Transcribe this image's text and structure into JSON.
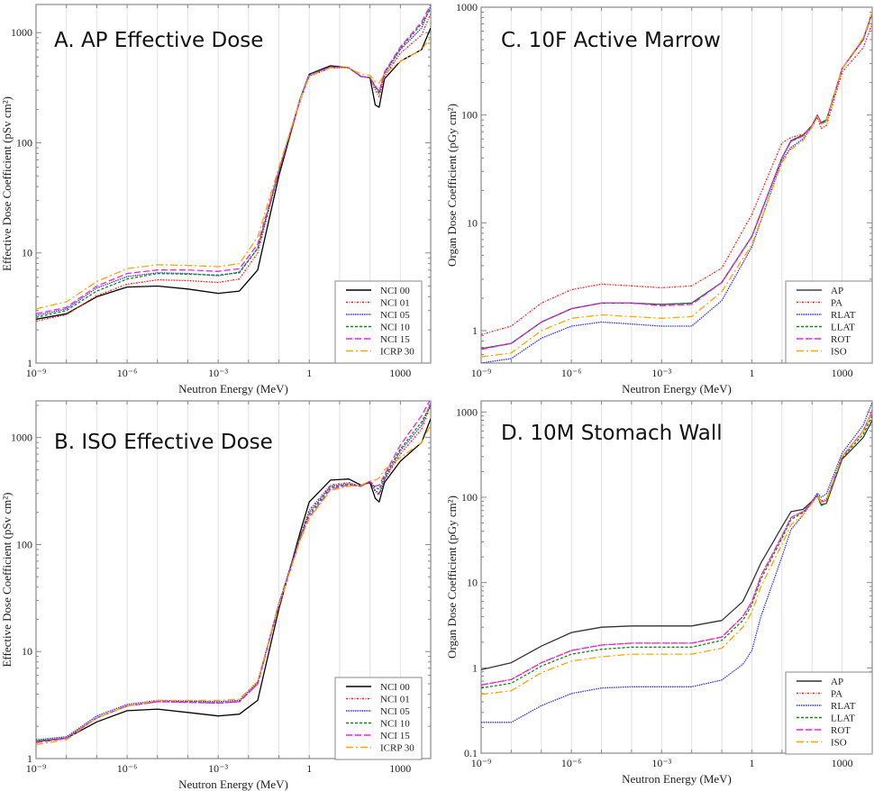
{
  "chart_data": [
    {
      "id": "A",
      "type": "line",
      "title": "A. AP Effective Dose",
      "xlabel": "Neutron Energy (MeV)",
      "ylabel": "Effective Dose Coefficient (pSv cm²)",
      "xscale": "log",
      "yscale": "log",
      "xlim": [
        1e-09,
        10000
      ],
      "ylim": [
        1,
        1800
      ],
      "xticks": [
        {
          "v": 1e-09,
          "label": "10⁻⁹"
        },
        {
          "v": 1e-06,
          "label": "10⁻⁶"
        },
        {
          "v": 0.001,
          "label": "10⁻³"
        },
        {
          "v": 1,
          "label": "1"
        },
        {
          "v": 1000,
          "label": "1000"
        }
      ],
      "yticks": [
        {
          "v": 1,
          "label": "1"
        },
        {
          "v": 10,
          "label": "10"
        },
        {
          "v": 100,
          "label": "100"
        },
        {
          "v": 1000,
          "label": "1000"
        }
      ],
      "grid": true,
      "legend_position": "bottom-right",
      "x": [
        1e-09,
        1e-08,
        1e-07,
        1e-06,
        1e-05,
        0.0001,
        0.001,
        0.005,
        0.02,
        0.1,
        0.5,
        1,
        5,
        20,
        50,
        100,
        150,
        200,
        300,
        1000,
        5000,
        10000
      ],
      "series": [
        {
          "name": "NCI 00",
          "color": "#000000",
          "dash": "",
          "values": [
            2.5,
            2.8,
            4.0,
            4.9,
            5.0,
            4.7,
            4.3,
            4.5,
            7,
            50,
            250,
            420,
            500,
            480,
            400,
            390,
            220,
            210,
            380,
            550,
            700,
            1100
          ]
        },
        {
          "name": "NCI 01",
          "color": "#ee2222",
          "dash": "2,1.5,1,1.5",
          "values": [
            2.4,
            2.75,
            4.1,
            5.2,
            5.7,
            5.6,
            5.4,
            5.8,
            10,
            55,
            240,
            400,
            480,
            480,
            400,
            390,
            300,
            260,
            400,
            650,
            950,
            1500
          ]
        },
        {
          "name": "NCI 05",
          "color": "#3333dd",
          "dash": "1.5,1",
          "values": [
            2.7,
            3.1,
            4.8,
            6.1,
            6.6,
            6.5,
            6.2,
            6.7,
            11,
            55,
            250,
            420,
            490,
            480,
            400,
            390,
            320,
            290,
            420,
            700,
            1100,
            1750
          ]
        },
        {
          "name": "NCI 10",
          "color": "#118811",
          "dash": "3,2",
          "values": [
            2.6,
            3.0,
            4.5,
            5.8,
            6.5,
            6.4,
            6.3,
            6.6,
            11,
            55,
            250,
            410,
            485,
            478,
            400,
            390,
            320,
            280,
            430,
            720,
            1200,
            1650
          ]
        },
        {
          "name": "NCI 15",
          "color": "#ee22ee",
          "dash": "7,3",
          "values": [
            2.8,
            3.2,
            5.0,
            6.5,
            7.0,
            7.0,
            6.8,
            7.2,
            12,
            56,
            250,
            410,
            485,
            480,
            400,
            390,
            330,
            290,
            440,
            740,
            1250,
            1800
          ]
        },
        {
          "name": "ICRP 30",
          "color": "#ffa500",
          "dash": "8,3,2,3",
          "values": [
            3.1,
            3.6,
            5.5,
            7.2,
            7.8,
            7.7,
            7.5,
            8.0,
            14,
            60,
            245,
            405,
            480,
            480,
            420,
            410,
            360,
            350,
            420,
            550,
            700,
            900
          ]
        }
      ]
    },
    {
      "id": "C",
      "type": "line",
      "title": "C. 10F Active Marrow",
      "xlabel": "Neutron Energy (MeV)",
      "ylabel": "Organ Dose Coefficient (pGy cm²)",
      "xscale": "log",
      "yscale": "log",
      "xlim": [
        1e-09,
        10000
      ],
      "ylim": [
        0.5,
        1000
      ],
      "xticks": [
        {
          "v": 1e-09,
          "label": "10⁻⁹"
        },
        {
          "v": 1e-06,
          "label": "10⁻⁶"
        },
        {
          "v": 0.001,
          "label": "10⁻³"
        },
        {
          "v": 1,
          "label": "1"
        },
        {
          "v": 1000,
          "label": "1000"
        }
      ],
      "yticks": [
        {
          "v": 1,
          "label": "1"
        },
        {
          "v": 10,
          "label": "10"
        },
        {
          "v": 100,
          "label": "100"
        },
        {
          "v": 1000,
          "label": "1000"
        }
      ],
      "grid": true,
      "legend_position": "bottom-right",
      "x": [
        1e-09,
        1e-08,
        1e-07,
        1e-06,
        1e-05,
        0.0001,
        0.001,
        0.01,
        0.1,
        1,
        10,
        20,
        50,
        100,
        150,
        200,
        300,
        1000,
        5000,
        10000
      ],
      "series": [
        {
          "name": "AP",
          "color": "#444444",
          "dash": "",
          "values": [
            0.68,
            0.76,
            1.2,
            1.6,
            1.8,
            1.8,
            1.75,
            1.8,
            2.8,
            7.5,
            40,
            58,
            65,
            80,
            100,
            85,
            90,
            270,
            500,
            900
          ]
        },
        {
          "name": "PA",
          "color": "#ee2222",
          "dash": "2,1.5,1,1.5",
          "values": [
            0.92,
            1.1,
            1.8,
            2.4,
            2.7,
            2.6,
            2.5,
            2.6,
            3.8,
            12,
            55,
            62,
            66,
            78,
            95,
            75,
            80,
            250,
            420,
            700
          ]
        },
        {
          "name": "RLAT",
          "color": "#3333dd",
          "dash": "1.5,1",
          "values": [
            0.5,
            0.55,
            0.85,
            1.1,
            1.2,
            1.15,
            1.1,
            1.1,
            1.9,
            6,
            38,
            50,
            60,
            78,
            98,
            83,
            88,
            270,
            500,
            880
          ]
        },
        {
          "name": "LLAT",
          "color": "#118811",
          "dash": "3,2",
          "values": [
            0.68,
            0.76,
            1.2,
            1.6,
            1.8,
            1.8,
            1.75,
            1.8,
            2.8,
            7.5,
            40,
            57,
            64,
            80,
            98,
            83,
            88,
            270,
            500,
            880
          ]
        },
        {
          "name": "ROT",
          "color": "#ee22ee",
          "dash": "7,3",
          "values": [
            0.67,
            0.76,
            1.2,
            1.6,
            1.8,
            1.8,
            1.7,
            1.75,
            2.8,
            7.5,
            40,
            57,
            64,
            80,
            98,
            83,
            88,
            270,
            500,
            880
          ]
        },
        {
          "name": "ISO",
          "color": "#ffa500",
          "dash": "8,3,2,3",
          "values": [
            0.57,
            0.62,
            1.0,
            1.3,
            1.4,
            1.35,
            1.3,
            1.35,
            2.3,
            6.3,
            36,
            48,
            58,
            77,
            97,
            82,
            88,
            270,
            520,
            900
          ]
        }
      ]
    },
    {
      "id": "B",
      "type": "line",
      "title": "B. ISO Effective Dose",
      "xlabel": "Neutron Energy (MeV)",
      "ylabel": "Effective Dose Coefficient (pSv cm²)",
      "xscale": "log",
      "yscale": "log",
      "xlim": [
        1e-09,
        10000
      ],
      "ylim": [
        1,
        2200
      ],
      "xticks": [
        {
          "v": 1e-09,
          "label": "10⁻⁹"
        },
        {
          "v": 1e-06,
          "label": "10⁻⁶"
        },
        {
          "v": 0.001,
          "label": "10⁻³"
        },
        {
          "v": 1,
          "label": "1"
        },
        {
          "v": 1000,
          "label": "1000"
        }
      ],
      "yticks": [
        {
          "v": 1,
          "label": "1"
        },
        {
          "v": 10,
          "label": "10"
        },
        {
          "v": 100,
          "label": "100"
        },
        {
          "v": 1000,
          "label": "1000"
        }
      ],
      "grid": true,
      "legend_position": "bottom-right",
      "x": [
        1e-09,
        1e-08,
        1e-07,
        1e-06,
        1e-05,
        0.0001,
        0.001,
        0.005,
        0.02,
        0.1,
        0.5,
        1,
        5,
        20,
        50,
        100,
        150,
        200,
        300,
        1000,
        5000,
        10000
      ],
      "series": [
        {
          "name": "NCI 00",
          "color": "#000000",
          "dash": "",
          "values": [
            1.45,
            1.55,
            2.2,
            2.8,
            2.9,
            2.7,
            2.5,
            2.6,
            3.5,
            25,
            130,
            250,
            400,
            410,
            360,
            380,
            270,
            250,
            380,
            600,
            900,
            1500
          ]
        },
        {
          "name": "NCI 01",
          "color": "#ee2222",
          "dash": "2,1.5,1,1.5",
          "values": [
            1.45,
            1.55,
            2.4,
            3.1,
            3.4,
            3.35,
            3.3,
            3.4,
            5,
            28,
            120,
            210,
            360,
            380,
            350,
            390,
            310,
            290,
            400,
            700,
            1200,
            2000
          ]
        },
        {
          "name": "NCI 05",
          "color": "#3333dd",
          "dash": "1.5,1",
          "values": [
            1.5,
            1.6,
            2.5,
            3.2,
            3.5,
            3.45,
            3.4,
            3.5,
            5.2,
            28,
            118,
            200,
            350,
            370,
            350,
            390,
            320,
            300,
            410,
            750,
            1300,
            2100
          ]
        },
        {
          "name": "NCI 10",
          "color": "#118811",
          "dash": "3,2",
          "values": [
            1.45,
            1.55,
            2.4,
            3.1,
            3.4,
            3.4,
            3.3,
            3.4,
            5,
            27,
            115,
            190,
            340,
            365,
            350,
            390,
            340,
            330,
            430,
            780,
            1400,
            2000
          ]
        },
        {
          "name": "NCI 15",
          "color": "#ee22ee",
          "dash": "7,3",
          "values": [
            1.4,
            1.55,
            2.4,
            3.1,
            3.4,
            3.35,
            3.3,
            3.4,
            5,
            27,
            112,
            180,
            330,
            360,
            350,
            390,
            350,
            360,
            450,
            850,
            1600,
            2300
          ]
        },
        {
          "name": "ICRP 30",
          "color": "#ffa500",
          "dash": "8,3,2,3",
          "values": [
            1.35,
            1.5,
            2.4,
            3.1,
            3.5,
            3.5,
            3.5,
            3.6,
            5.3,
            27,
            110,
            175,
            320,
            350,
            360,
            390,
            400,
            420,
            500,
            650,
            900,
            1300
          ]
        }
      ]
    },
    {
      "id": "D",
      "type": "line",
      "title": "D. 10M Stomach Wall",
      "xlabel": "Neutron Energy (MeV)",
      "ylabel": "Organ Dose Coefficient (pGy cm²)",
      "xscale": "log",
      "yscale": "log",
      "xlim": [
        1e-09,
        10000
      ],
      "ylim": [
        0.1,
        1350
      ],
      "xticks": [
        {
          "v": 1e-09,
          "label": "10⁻⁹"
        },
        {
          "v": 1e-06,
          "label": "10⁻⁶"
        },
        {
          "v": 0.001,
          "label": "10⁻³"
        },
        {
          "v": 1,
          "label": "1"
        },
        {
          "v": 1000,
          "label": "1000"
        }
      ],
      "yticks": [
        {
          "v": 0.1,
          "label": "0.1"
        },
        {
          "v": 1,
          "label": "1"
        },
        {
          "v": 10,
          "label": "10"
        },
        {
          "v": 100,
          "label": "100"
        },
        {
          "v": 1000,
          "label": "1000"
        }
      ],
      "grid": true,
      "legend_position": "bottom-right",
      "x": [
        1e-09,
        1e-08,
        1e-07,
        1e-06,
        1e-05,
        0.0001,
        0.001,
        0.01,
        0.1,
        0.5,
        1,
        2,
        10,
        20,
        50,
        100,
        150,
        200,
        300,
        1000,
        5000,
        10000
      ],
      "series": [
        {
          "name": "AP",
          "color": "#333333",
          "dash": "",
          "values": [
            0.95,
            1.15,
            1.8,
            2.6,
            3.0,
            3.1,
            3.1,
            3.1,
            3.6,
            6,
            10,
            17,
            45,
            68,
            72,
            90,
            105,
            82,
            85,
            280,
            500,
            800
          ]
        },
        {
          "name": "PA",
          "color": "#ee2222",
          "dash": "2,1.5,1,1.5",
          "values": [
            0.63,
            0.73,
            1.15,
            1.6,
            1.85,
            1.95,
            1.95,
            1.95,
            2.3,
            4,
            6,
            12,
            35,
            58,
            68,
            88,
            108,
            90,
            95,
            300,
            600,
            1050
          ]
        },
        {
          "name": "RLAT",
          "color": "#3333dd",
          "dash": "1.5,1",
          "values": [
            0.23,
            0.23,
            0.36,
            0.5,
            0.58,
            0.6,
            0.6,
            0.6,
            0.72,
            1.1,
            1.6,
            4,
            20,
            42,
            62,
            90,
            112,
            100,
            110,
            330,
            700,
            1300
          ]
        },
        {
          "name": "LLAT",
          "color": "#118811",
          "dash": "3,2",
          "values": [
            0.58,
            0.66,
            1.05,
            1.45,
            1.65,
            1.75,
            1.75,
            1.75,
            2.1,
            3.6,
            5.5,
            11,
            33,
            55,
            66,
            86,
            105,
            80,
            85,
            290,
            550,
            900
          ]
        },
        {
          "name": "ROT",
          "color": "#ee22ee",
          "dash": "7,3",
          "values": [
            0.63,
            0.73,
            1.15,
            1.6,
            1.85,
            1.95,
            1.95,
            1.95,
            2.3,
            4,
            6,
            12,
            35,
            58,
            68,
            88,
            106,
            88,
            92,
            300,
            600,
            1000
          ]
        },
        {
          "name": "ISO",
          "color": "#ffa500",
          "dash": "8,3,2,3",
          "values": [
            0.49,
            0.54,
            0.88,
            1.2,
            1.35,
            1.45,
            1.45,
            1.45,
            1.7,
            3,
            4.5,
            9,
            28,
            48,
            62,
            85,
            104,
            87,
            92,
            300,
            600,
            1000
          ]
        }
      ]
    }
  ]
}
